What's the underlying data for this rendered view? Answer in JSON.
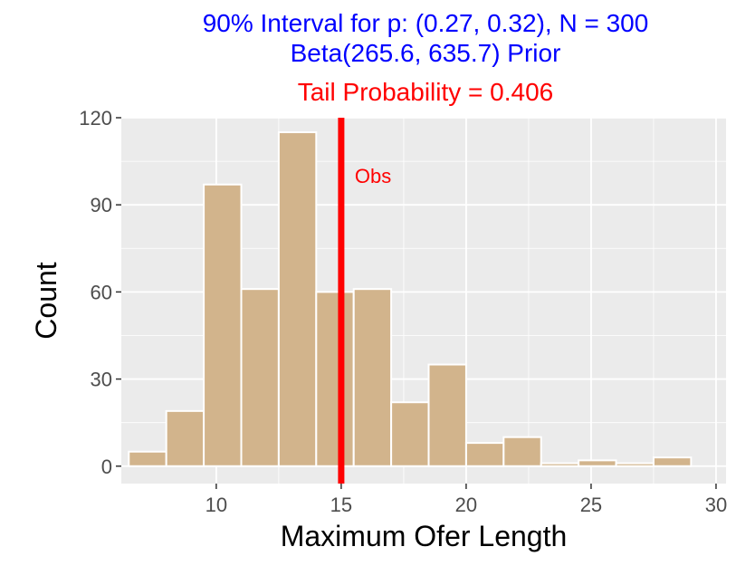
{
  "chart_data": {
    "type": "bar",
    "title_lines": [
      "90% Interval for p: (0.27, 0.32), N = 300",
      "Beta(265.6, 635.7) Prior"
    ],
    "subtitle": "Tail Probability = 0.406",
    "xlabel": "Maximum Ofer Length",
    "ylabel": "Count",
    "xlim": [
      6.2,
      30.4
    ],
    "ylim": [
      -6,
      120
    ],
    "x_ticks": [
      10,
      15,
      20,
      25,
      30
    ],
    "y_ticks": [
      0,
      30,
      60,
      90,
      120
    ],
    "bin_width": 1.5,
    "bins": [
      {
        "x0": 6.5,
        "x1": 8.0,
        "count": 5
      },
      {
        "x0": 8.0,
        "x1": 9.5,
        "count": 19
      },
      {
        "x0": 9.5,
        "x1": 11.0,
        "count": 97
      },
      {
        "x0": 11.0,
        "x1": 12.5,
        "count": 61
      },
      {
        "x0": 12.5,
        "x1": 14.0,
        "count": 115
      },
      {
        "x0": 14.0,
        "x1": 15.5,
        "count": 60
      },
      {
        "x0": 15.5,
        "x1": 17.0,
        "count": 61
      },
      {
        "x0": 17.0,
        "x1": 18.5,
        "count": 22
      },
      {
        "x0": 18.5,
        "x1": 20.0,
        "count": 35
      },
      {
        "x0": 20.0,
        "x1": 21.5,
        "count": 8
      },
      {
        "x0": 21.5,
        "x1": 23.0,
        "count": 10
      },
      {
        "x0": 23.0,
        "x1": 24.5,
        "count": 1
      },
      {
        "x0": 24.5,
        "x1": 26.0,
        "count": 2
      },
      {
        "x0": 26.0,
        "x1": 27.5,
        "count": 1
      },
      {
        "x0": 27.5,
        "x1": 29.0,
        "count": 3
      }
    ],
    "observed": {
      "x": 15,
      "label": "Obs"
    },
    "grid": true,
    "colors": {
      "title": "#0000ff",
      "subtitle": "#ff0000",
      "bar_fill": "#d2b48c",
      "bar_edge": "#ffffff",
      "obs_line": "#ff0000",
      "panel_bg": "#ebebeb",
      "grid_major": "#ffffff"
    }
  }
}
